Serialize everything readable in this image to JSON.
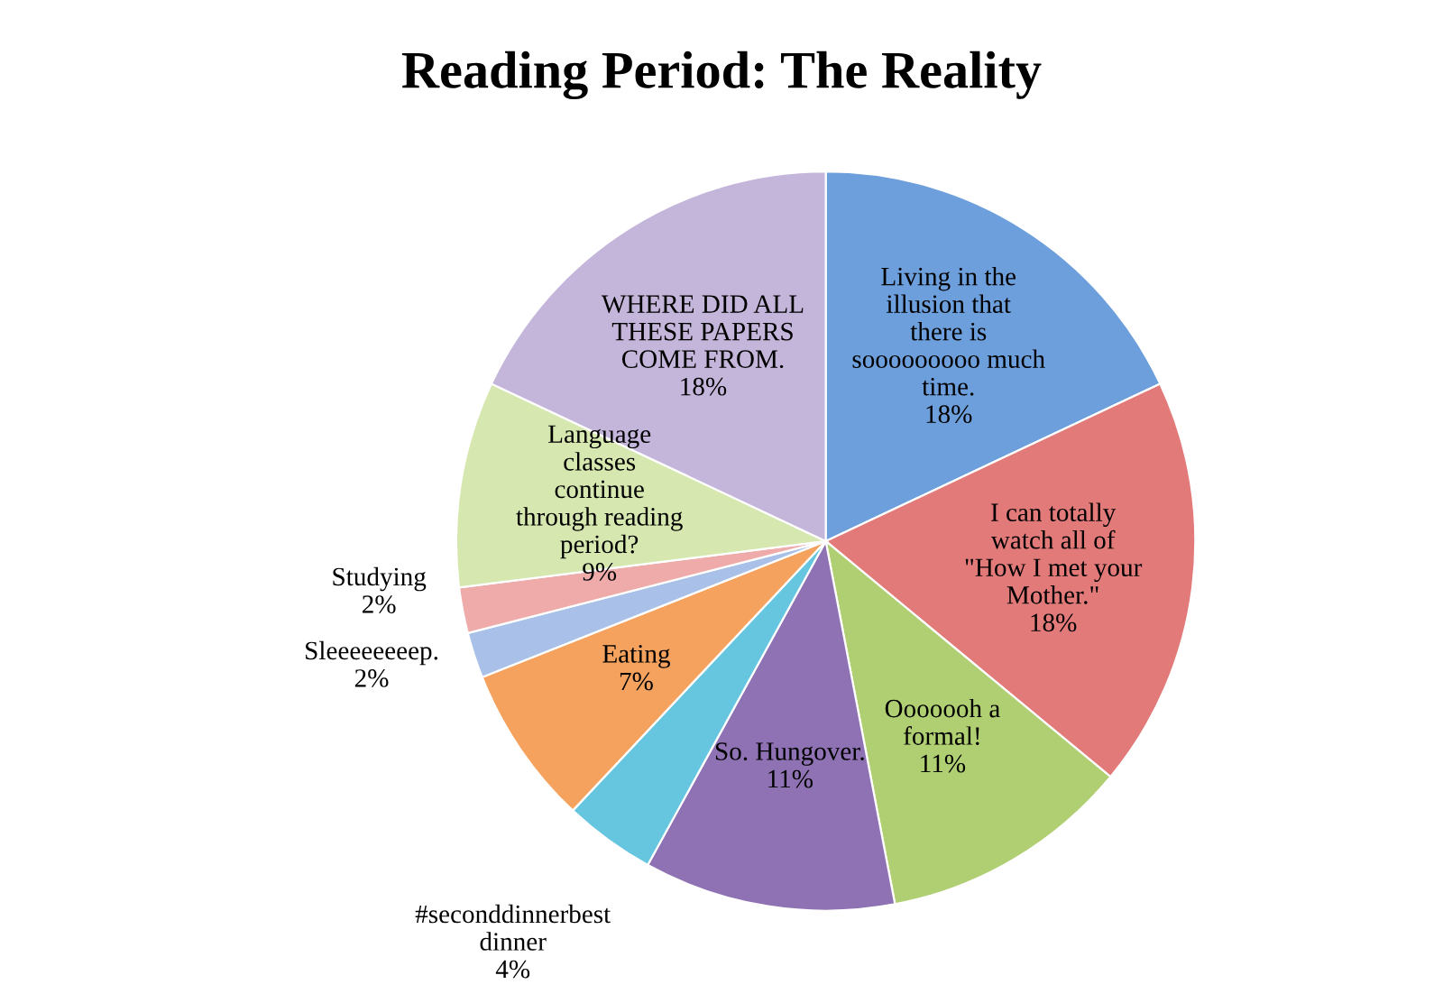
{
  "chart_data": {
    "type": "pie",
    "title": "Reading Period: The Reality",
    "categories": [
      "Living in the illusion that there is sooooooooo much time.",
      "I can totally watch all of \"How I met your Mother.\"",
      "Ooooooh a formal!",
      "So. Hungover.",
      "#seconddinnerbest dinner",
      "Eating",
      "Sleeeeeeeep.",
      "Studying",
      "Language classes continue through reading period?",
      "WHERE DID ALL THESE PAPERS COME FROM."
    ],
    "values": [
      18,
      18,
      11,
      11,
      4,
      7,
      2,
      2,
      9,
      18
    ],
    "value_labels": [
      "18%",
      "18%",
      "11%",
      "11%",
      "4%",
      "7%",
      "2%",
      "2%",
      "9%",
      "18%"
    ],
    "colors": [
      "#6d9fdc",
      "#e37a7a",
      "#b0cf72",
      "#8f72b3",
      "#66c5df",
      "#f5a25e",
      "#a9c0e8",
      "#efaaaa",
      "#d6e8b0",
      "#c4b5da"
    ],
    "legend": false
  }
}
